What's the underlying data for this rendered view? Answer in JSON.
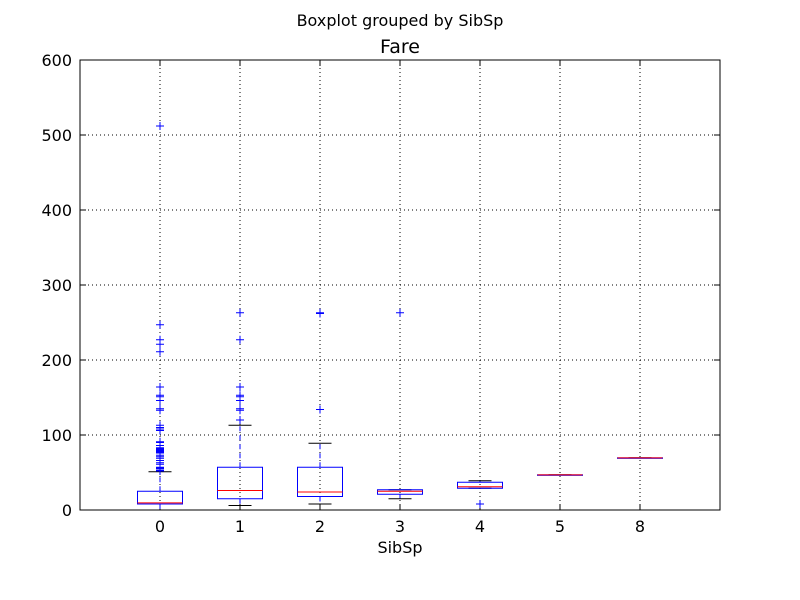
{
  "chart_data": {
    "type": "boxplot",
    "suptitle": "Boxplot grouped by SibSp",
    "title": "Fare",
    "xlabel": "SibSp",
    "ylabel": "",
    "ylim": [
      0,
      600
    ],
    "yticks": [
      0,
      100,
      200,
      300,
      400,
      500,
      600
    ],
    "grid": true,
    "categories": [
      "0",
      "1",
      "2",
      "3",
      "4",
      "5",
      "8"
    ],
    "boxes": [
      {
        "label": "0",
        "whisker_low": 0,
        "q1": 8,
        "median": 9.5,
        "q3": 25,
        "whisker_high": 51,
        "fliers": [
          52,
          53,
          55,
          56,
          57,
          61,
          63,
          66,
          69,
          71,
          73,
          76,
          77,
          78,
          79,
          80,
          81,
          82,
          83,
          86,
          90,
          91,
          106,
          108,
          110,
          113,
          133,
          135,
          146,
          151,
          153,
          164,
          211,
          221,
          227,
          247,
          512
        ]
      },
      {
        "label": "1",
        "whisker_low": 6,
        "q1": 15,
        "median": 26,
        "q3": 57,
        "whisker_high": 113,
        "fliers": [
          120,
          133,
          135,
          146,
          151,
          153,
          164,
          227,
          263
        ]
      },
      {
        "label": "2",
        "whisker_low": 8,
        "q1": 18,
        "median": 24,
        "q3": 57,
        "whisker_high": 89,
        "fliers": [
          134,
          262,
          263
        ]
      },
      {
        "label": "3",
        "whisker_low": 15,
        "q1": 21,
        "median": 25,
        "q3": 27,
        "whisker_high": 27,
        "fliers": [
          263
        ]
      },
      {
        "label": "4",
        "whisker_low": 29,
        "q1": 29,
        "median": 31,
        "q3": 37,
        "whisker_high": 39,
        "fliers": [
          8
        ]
      },
      {
        "label": "5",
        "whisker_low": 46.9,
        "q1": 46.9,
        "median": 46.9,
        "q3": 46.9,
        "whisker_high": 46.9,
        "fliers": []
      },
      {
        "label": "8",
        "whisker_low": 69.55,
        "q1": 69.55,
        "median": 69.55,
        "q3": 69.55,
        "whisker_high": 69.55,
        "fliers": []
      }
    ]
  }
}
